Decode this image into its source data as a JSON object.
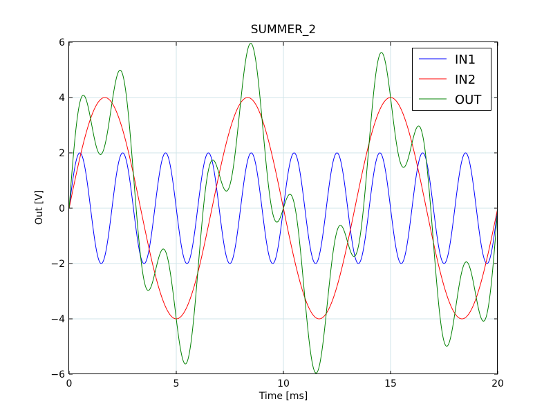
{
  "chart_data": {
    "type": "line",
    "title": "SUMMER_2",
    "xlabel": "Time  [ms]",
    "ylabel": "Out [V]",
    "xlim": [
      0,
      20
    ],
    "ylim": [
      -6,
      6
    ],
    "xticks": [
      0,
      5,
      10,
      15,
      20
    ],
    "xtick_labels": [
      "0",
      "5",
      "10",
      "15",
      "20"
    ],
    "yticks": [
      -6,
      -4,
      -2,
      0,
      2,
      4,
      6
    ],
    "ytick_labels": [
      "−6",
      "−4",
      "−2",
      "0",
      "2",
      "4",
      "6"
    ],
    "grid": true,
    "legend_position": "top-right",
    "series": [
      {
        "name": "IN1",
        "color": "#0000ff",
        "amplitude": 2,
        "frequency_khz": 0.5
      },
      {
        "name": "IN2",
        "color": "#ff0000",
        "amplitude": 4,
        "frequency_khz": 0.15
      },
      {
        "name": "OUT",
        "color": "#008000",
        "formula": "IN1 + IN2"
      }
    ]
  }
}
